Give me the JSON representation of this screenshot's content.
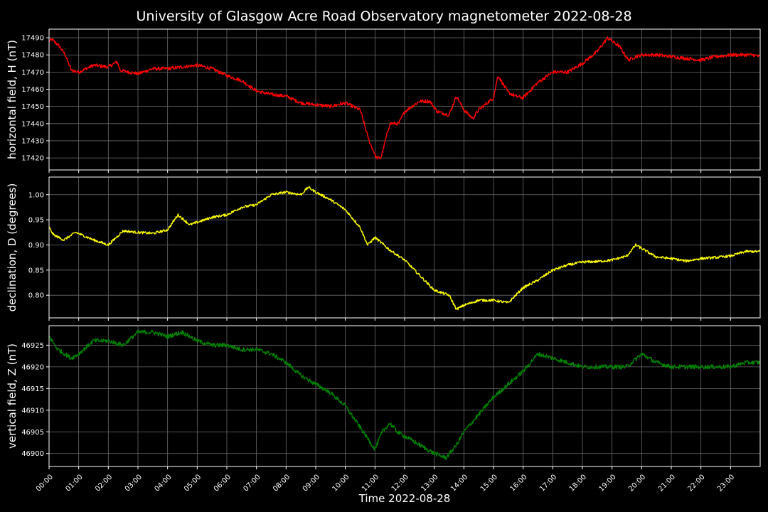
{
  "title": "University of Glasgow Acre Road Observatory magnetometer 2022-08-28",
  "chart_data": {
    "type": "line",
    "x_label": "Time 2022-08-28",
    "x_ticks": [
      "00:00",
      "01:00",
      "02:00",
      "03:00",
      "04:00",
      "05:00",
      "06:00",
      "07:00",
      "08:00",
      "09:00",
      "10:00",
      "11:00",
      "12:00",
      "13:00",
      "14:00",
      "15:00",
      "16:00",
      "17:00",
      "18:00",
      "19:00",
      "20:00",
      "21:00",
      "22:00",
      "23:00"
    ],
    "xlim_hours": [
      0,
      24
    ],
    "grid": true,
    "panels": [
      {
        "name": "H",
        "ylabel": "horizontal field, H (nT)",
        "color": "#ff0000",
        "ylim": [
          17413,
          17495
        ],
        "yticks": [
          17420,
          17430,
          17440,
          17450,
          17460,
          17470,
          17480,
          17490
        ],
        "tick_format": "int",
        "noise": 1.0,
        "x_hours": [
          0,
          0.1,
          0.35,
          0.55,
          0.75,
          1.0,
          1.5,
          2.0,
          2.3,
          2.4,
          3.0,
          3.5,
          3.75,
          4.0,
          4.5,
          5.0,
          5.5,
          6.0,
          6.5,
          7.0,
          7.5,
          8.0,
          8.5,
          9.0,
          9.5,
          10.0,
          10.5,
          10.8,
          11.05,
          11.2,
          11.5,
          11.8,
          12.0,
          12.5,
          12.85,
          13.1,
          13.5,
          13.75,
          14.0,
          14.3,
          14.5,
          15.0,
          15.15,
          15.5,
          15.75,
          16.0,
          16.5,
          17.0,
          17.5,
          18.0,
          18.5,
          18.85,
          19.0,
          19.25,
          19.55,
          19.8,
          20.0,
          20.5,
          21.0,
          21.5,
          22.0,
          22.5,
          23.0,
          23.5,
          23.75,
          24.0
        ],
        "values": [
          17488,
          17489,
          17485,
          17480,
          17471,
          17470,
          17474,
          17473,
          17476,
          17471,
          17469,
          17472,
          17472,
          17472,
          17473,
          17474,
          17472,
          17468,
          17465,
          17459,
          17457,
          17456,
          17452,
          17451,
          17450,
          17452,
          17448,
          17430,
          17420,
          17420,
          17440,
          17440,
          17447,
          17453,
          17453,
          17447,
          17445,
          17456,
          17448,
          17443,
          17448,
          17455,
          17468,
          17458,
          17456,
          17455,
          17464,
          17470,
          17470,
          17475,
          17482,
          17490,
          17488,
          17485,
          17477,
          17479,
          17480,
          17480,
          17479,
          17478,
          17477,
          17479,
          17480,
          17480,
          17480,
          17479
        ]
      },
      {
        "name": "D",
        "ylabel": "declination, D (degrees)",
        "color": "#ffff00",
        "ylim": [
          0.755,
          1.035
        ],
        "yticks": [
          0.8,
          0.85,
          0.9,
          0.95,
          1.0
        ],
        "tick_format": "2dp",
        "noise": 0.0025,
        "x_hours": [
          0,
          0.15,
          0.5,
          0.9,
          1.5,
          2.0,
          2.5,
          3.0,
          3.5,
          4.0,
          4.35,
          4.75,
          5.0,
          5.5,
          6.0,
          6.5,
          7.0,
          7.5,
          8.0,
          8.5,
          8.75,
          9.0,
          9.5,
          10.0,
          10.5,
          10.75,
          11.0,
          11.5,
          12.0,
          12.5,
          13.0,
          13.5,
          13.75,
          14.0,
          14.5,
          15.0,
          15.5,
          16.0,
          16.5,
          17.0,
          17.5,
          18.0,
          18.5,
          19.0,
          19.5,
          19.8,
          20.0,
          20.5,
          21.0,
          21.5,
          22.0,
          22.5,
          23.0,
          23.5,
          24.0
        ],
        "values": [
          0.935,
          0.92,
          0.91,
          0.925,
          0.91,
          0.9,
          0.928,
          0.925,
          0.923,
          0.93,
          0.96,
          0.94,
          0.945,
          0.955,
          0.96,
          0.975,
          0.98,
          1.0,
          1.005,
          1.0,
          1.015,
          1.005,
          0.99,
          0.97,
          0.935,
          0.9,
          0.915,
          0.89,
          0.87,
          0.84,
          0.81,
          0.8,
          0.772,
          0.78,
          0.79,
          0.79,
          0.785,
          0.815,
          0.83,
          0.85,
          0.86,
          0.866,
          0.867,
          0.87,
          0.878,
          0.9,
          0.893,
          0.876,
          0.873,
          0.868,
          0.873,
          0.875,
          0.878,
          0.887,
          0.887
        ]
      },
      {
        "name": "Z",
        "ylabel": "vertical field, Z (nT)",
        "color": "#008000",
        "ylim": [
          46897,
          46929.5
        ],
        "yticks": [
          46900,
          46905,
          46910,
          46915,
          46920,
          46925
        ],
        "tick_format": "int",
        "noise": 0.5,
        "x_hours": [
          0,
          0.1,
          0.3,
          0.75,
          1.0,
          1.5,
          2.0,
          2.5,
          3.0,
          3.5,
          4.0,
          4.5,
          5.0,
          5.5,
          6.0,
          6.5,
          7.0,
          7.5,
          8.0,
          8.5,
          9.0,
          9.5,
          10.0,
          10.5,
          11.0,
          11.25,
          11.5,
          11.75,
          12.0,
          12.5,
          13.0,
          13.4,
          13.75,
          14.0,
          14.5,
          15.0,
          15.5,
          16.0,
          16.5,
          17.0,
          17.5,
          18.0,
          18.5,
          19.0,
          19.5,
          20.0,
          20.5,
          21.0,
          21.5,
          22.0,
          22.5,
          23.0,
          23.5,
          24.0
        ],
        "values": [
          46927,
          46926,
          46924,
          46922,
          46923,
          46926,
          46926,
          46925,
          46928,
          46928,
          46927,
          46928,
          46926,
          46925,
          46925,
          46924,
          46924,
          46923,
          46921,
          46918,
          46916,
          46914,
          46911,
          46906,
          46901,
          46905,
          46907,
          46905,
          46904,
          46902,
          46900,
          46899,
          46902,
          46905,
          46909,
          46913,
          46916,
          46919,
          46923,
          46922,
          46921,
          46920,
          46920,
          46920,
          46920,
          46923,
          46921,
          46920,
          46920,
          46920,
          46920,
          46920,
          46921,
          46921
        ]
      }
    ]
  }
}
